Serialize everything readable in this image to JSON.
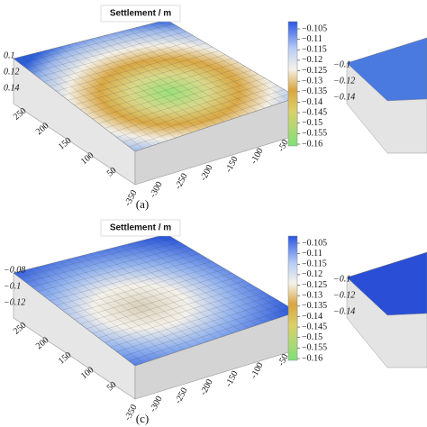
{
  "panels": [
    {
      "label": "(a)",
      "title": "Settlement / m",
      "z_ticks": [
        "0.1",
        "0.12",
        "0.14"
      ],
      "y_ticks": [
        "250",
        "200",
        "150",
        "100",
        "50"
      ],
      "x_ticks": [
        "-350",
        "-300",
        "-250",
        "-200",
        "-150",
        "-100",
        "-50"
      ],
      "colorbar_ticks": [
        "−0.105",
        "−0.11",
        "−0.115",
        "−0.12",
        "−0.125",
        "−0.13",
        "−0.135",
        "−0.14",
        "−0.145",
        "−0.15",
        "−0.155",
        "−0.16"
      ],
      "side_panel_z_ticks": [
        "−0.1",
        "−0.12",
        "−0.14"
      ]
    },
    {
      "label": "(c)",
      "title": "Settlement / m",
      "z_ticks": [
        "−0.08",
        "−0.1",
        "−0.12"
      ],
      "y_ticks": [
        "250",
        "200",
        "150",
        "100",
        "50"
      ],
      "x_ticks": [
        "-350",
        "-300",
        "-250",
        "-200",
        "-150",
        "-100",
        "-50"
      ],
      "colorbar_ticks": [
        "−0.105",
        "−0.11",
        "−0.115",
        "−0.12",
        "−0.125",
        "−0.13",
        "−0.135",
        "−0.14",
        "−0.145",
        "−0.15",
        "−0.155",
        "−0.16"
      ],
      "side_panel_z_ticks": [
        "−0.1",
        "−0.12",
        "−0.14"
      ]
    }
  ]
}
